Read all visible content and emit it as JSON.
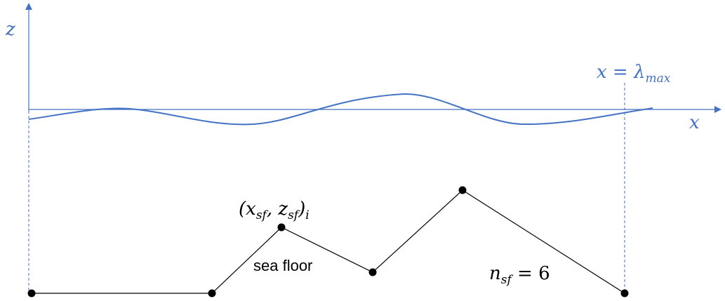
{
  "colors": {
    "axis": "#4472C4",
    "seafloor": "#000000",
    "background": "#ffffff"
  },
  "axes": {
    "z_label": "z",
    "x_label": "x"
  },
  "annotations": {
    "lambda_label": "x = λ",
    "lambda_sub": "max",
    "point_label": "(x",
    "point_label_sub_x": "sf",
    "point_label_mid": ", z",
    "point_label_sub_z": "sf",
    "point_label_end": ")",
    "point_label_sub_i": "i",
    "sea_floor_label": "sea floor",
    "nsf_label": "n",
    "nsf_sub": "sf",
    "nsf_value": " = 6"
  }
}
